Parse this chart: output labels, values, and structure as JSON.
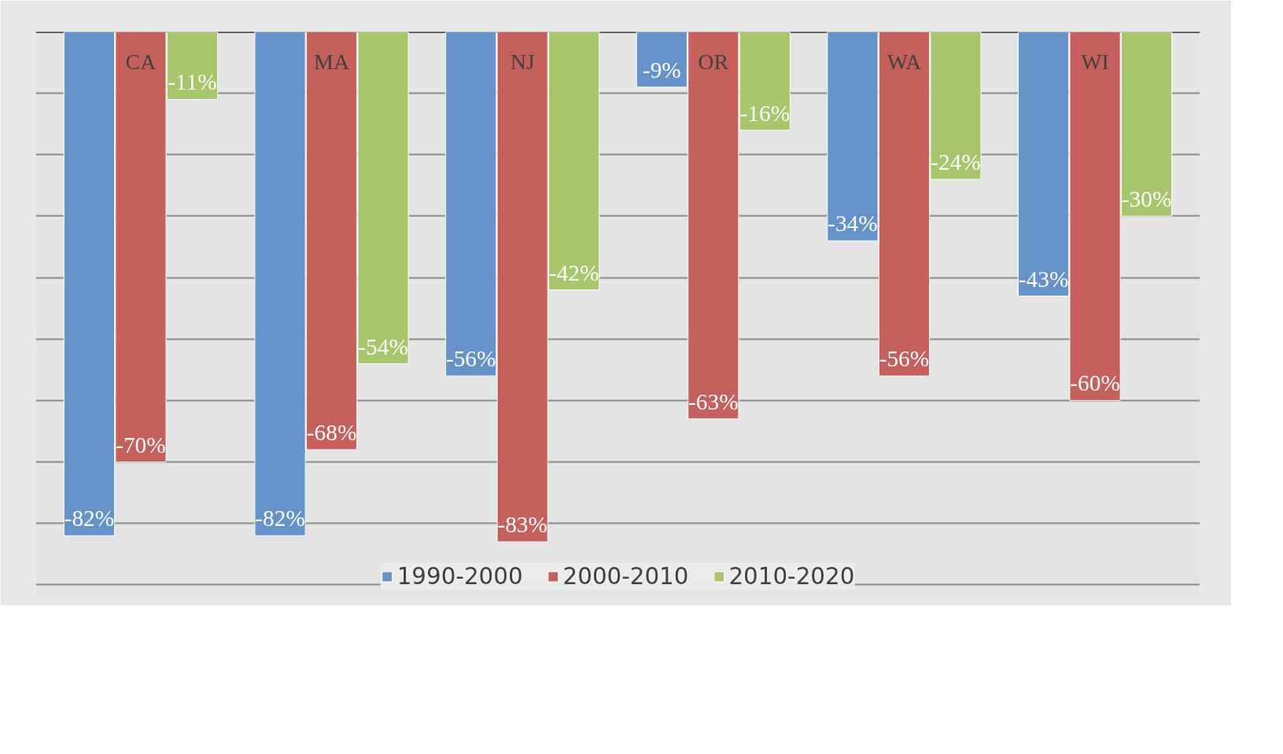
{
  "chart_data": {
    "type": "bar",
    "categories": [
      "CA",
      "MA",
      "NJ",
      "OR",
      "WA",
      "WI"
    ],
    "series": [
      {
        "name": "1990-2000",
        "color": "#6592c9",
        "values": [
          -82,
          -82,
          -56,
          -9,
          -34,
          -43
        ],
        "value_labels": [
          "-82%",
          "-82%",
          "-56%",
          "-9%",
          "-34%",
          "-43%"
        ]
      },
      {
        "name": "2000-2010",
        "color": "#c6605d",
        "values": [
          -70,
          -68,
          -83,
          -63,
          -56,
          -60
        ],
        "value_labels": [
          "-70%",
          "-68%",
          "-83%",
          "-63%",
          "-56%",
          "-60%"
        ]
      },
      {
        "name": "2010-2020",
        "color": "#a7c56b",
        "values": [
          -11,
          -54,
          -42,
          -16,
          -24,
          -30
        ],
        "value_labels": [
          "-11%",
          "-54%",
          "-42%",
          "-16%",
          "-24%",
          "-30%"
        ]
      }
    ],
    "grid": "y",
    "legend": "bottom",
    "tick_labels": "x"
  }
}
